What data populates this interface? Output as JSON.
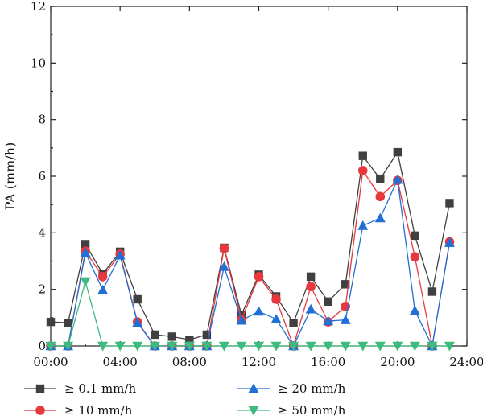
{
  "chart_data": {
    "type": "line",
    "xlabel": "",
    "ylabel": "PA (mm/h)",
    "xlim": [
      0,
      24
    ],
    "ylim": [
      0,
      12
    ],
    "x_ticks": [
      0,
      4,
      8,
      12,
      16,
      20,
      24
    ],
    "x_tick_labels": [
      "00:00",
      "04:00",
      "08:00",
      "12:00",
      "16:00",
      "20:00",
      "24:00"
    ],
    "y_ticks": [
      0,
      2,
      4,
      6,
      8,
      10,
      12
    ],
    "y_tick_labels": [
      "0",
      "2",
      "4",
      "6",
      "8",
      "10",
      "12"
    ],
    "grid": false,
    "legend_position": "bottom",
    "x": [
      0,
      1,
      2,
      3,
      4,
      5,
      6,
      7,
      8,
      9,
      10,
      11,
      12,
      13,
      14,
      15,
      16,
      17,
      18,
      19,
      20,
      21,
      22,
      23
    ],
    "series": [
      {
        "name": "≥ 0.1 mm/h",
        "marker": "square",
        "color": "#404040",
        "values": [
          0.85,
          0.82,
          3.6,
          2.55,
          3.33,
          1.65,
          0.4,
          0.33,
          0.22,
          0.4,
          3.47,
          1.1,
          2.52,
          1.75,
          0.82,
          2.45,
          1.57,
          2.18,
          6.72,
          5.9,
          6.85,
          3.9,
          1.92,
          5.05
        ]
      },
      {
        "name": "≥ 10 mm/h",
        "marker": "circle",
        "color": "#e8383d",
        "values": [
          0,
          0,
          3.35,
          2.45,
          3.25,
          0.85,
          0,
          0,
          0,
          0,
          3.45,
          0.92,
          2.45,
          1.65,
          0,
          2.1,
          0.85,
          1.4,
          6.2,
          5.28,
          5.85,
          3.15,
          0,
          3.68
        ]
      },
      {
        "name": "≥ 20 mm/h",
        "marker": "triangle-up",
        "color": "#1f6fd6",
        "values": [
          0,
          0,
          3.3,
          1.98,
          3.2,
          0.82,
          0,
          0,
          0,
          0,
          2.8,
          0.9,
          1.22,
          0.95,
          0,
          1.3,
          0.88,
          0.92,
          4.25,
          4.52,
          5.88,
          1.25,
          0,
          3.65
        ]
      },
      {
        "name": "≥ 50 mm/h",
        "marker": "triangle-down",
        "color": "#3dba7e",
        "values": [
          0,
          0,
          2.28,
          0,
          0,
          0,
          0,
          0,
          0,
          0,
          0,
          0,
          0,
          0,
          0,
          0,
          0,
          0,
          0,
          0,
          0,
          0,
          0,
          0
        ]
      }
    ]
  }
}
